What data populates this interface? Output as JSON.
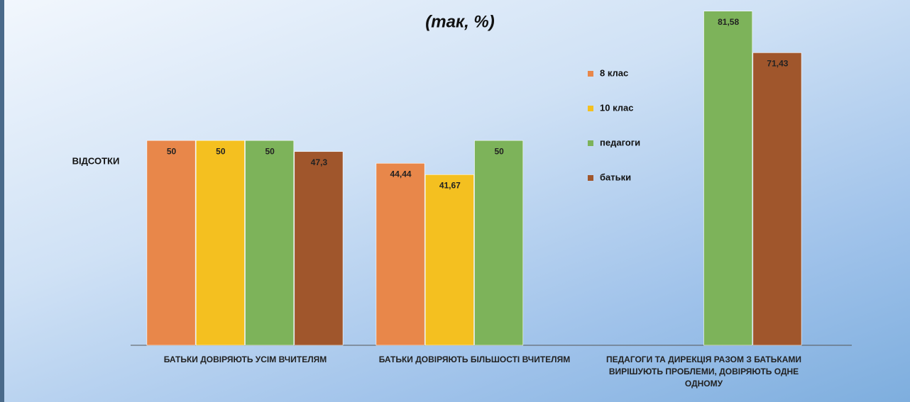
{
  "chart_data": {
    "type": "bar",
    "title": "(так, %)",
    "y_label": "ВІДСОТКИ",
    "categories": [
      "БАТЬКИ ДОВІРЯЮТЬ УСІМ ВЧИТЕЛЯМ",
      "БАТЬКИ ДОВІРЯЮТЬ БІЛЬШОСТІ ВЧИТЕЛЯМ",
      "ПЕДАГОГИ ТА ДИРЕКЦІЯ РАЗОМ З БАТЬКАМИ ВИРІШУЮТЬ ПРОБЛЕМИ, ДОВІРЯЮТЬ ОДНЕ ОДНОМУ"
    ],
    "series": [
      {
        "name": "8 клас",
        "color": "#e8874a",
        "values": [
          50,
          44.44,
          null
        ],
        "value_labels": [
          "50",
          "44,44",
          null
        ]
      },
      {
        "name": "10 клас",
        "color": "#f4c020",
        "values": [
          50,
          41.67,
          null
        ],
        "value_labels": [
          "50",
          "41,67",
          null
        ]
      },
      {
        "name": "педагоги",
        "color": "#7db35a",
        "values": [
          50,
          50,
          81.58
        ],
        "value_labels": [
          "50",
          "50",
          "81,58"
        ]
      },
      {
        "name": "батьки",
        "color": "#a0562c",
        "values": [
          47.3,
          null,
          71.43
        ],
        "value_labels": [
          "47,3",
          null,
          "71,43"
        ]
      }
    ],
    "ylim": [
      0,
      84.3
    ],
    "legend": "right"
  }
}
